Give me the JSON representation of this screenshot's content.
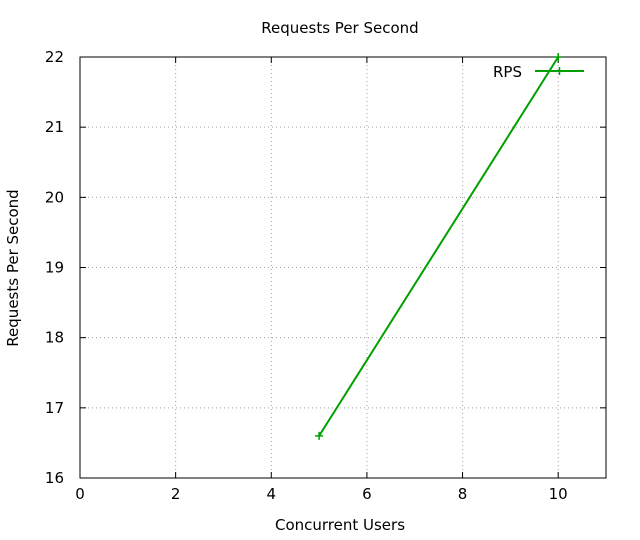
{
  "chart_data": {
    "type": "line",
    "title": "Requests Per Second",
    "xlabel": "Concurrent Users",
    "ylabel": "Requests Per Second",
    "xlim": [
      0,
      11
    ],
    "ylim": [
      16,
      22
    ],
    "xticks": [
      0,
      2,
      4,
      6,
      8,
      10
    ],
    "yticks": [
      16,
      17,
      18,
      19,
      20,
      21,
      22
    ],
    "grid": true,
    "legend_position": "top-right",
    "series": [
      {
        "name": "RPS",
        "color": "#00a000",
        "marker": "plus",
        "x": [
          5,
          10
        ],
        "y": [
          16.6,
          22.0
        ]
      }
    ]
  }
}
